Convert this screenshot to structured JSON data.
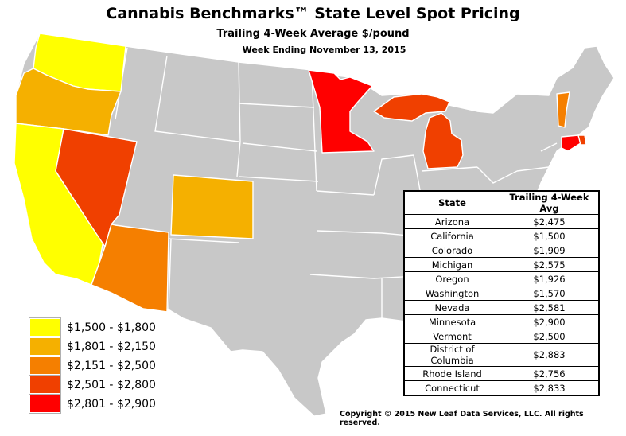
{
  "header": {
    "title": "Cannabis Benchmarks™ State Level Spot Pricing",
    "subtitle": "Trailing 4-Week Average $/pound",
    "week": "Week Ending November 13, 2015"
  },
  "colors": {
    "no_data": "#c8c8c8",
    "border": "#ffffff",
    "band1": "#ffff00",
    "band2": "#f5b000",
    "band3": "#f57f00",
    "band4": "#f04000",
    "band5": "#ff0000"
  },
  "legend": [
    {
      "label": "$1,500 - $1,800",
      "color": "#ffff00"
    },
    {
      "label": "$1,801 - $2,150",
      "color": "#f5b000"
    },
    {
      "label": "$2,151 - $2,500",
      "color": "#f57f00"
    },
    {
      "label": "$2,501 - $2,800",
      "color": "#f04000"
    },
    {
      "label": "$2,801 - $2,900",
      "color": "#ff0000"
    }
  ],
  "table": {
    "headers": [
      "State",
      "Trailing 4-Week Avg"
    ],
    "rows": [
      {
        "state": "Arizona",
        "avg": "$2,475"
      },
      {
        "state": "California",
        "avg": "$1,500"
      },
      {
        "state": "Colorado",
        "avg": "$1,909"
      },
      {
        "state": "Michigan",
        "avg": "$2,575"
      },
      {
        "state": "Oregon",
        "avg": "$1,926"
      },
      {
        "state": "Washington",
        "avg": "$1,570"
      },
      {
        "state": "Nevada",
        "avg": "$2,581"
      },
      {
        "state": "Minnesota",
        "avg": "$2,900"
      },
      {
        "state": "Vermont",
        "avg": "$2,500"
      },
      {
        "state": "District of Columbia",
        "avg": "$2,883"
      },
      {
        "state": "Rhode Island",
        "avg": "$2,756"
      },
      {
        "state": "Connecticut",
        "avg": "$2,833"
      }
    ]
  },
  "copyright": "Copyright © 2015 New Leaf Data Services, LLC.  All rights reserved."
}
